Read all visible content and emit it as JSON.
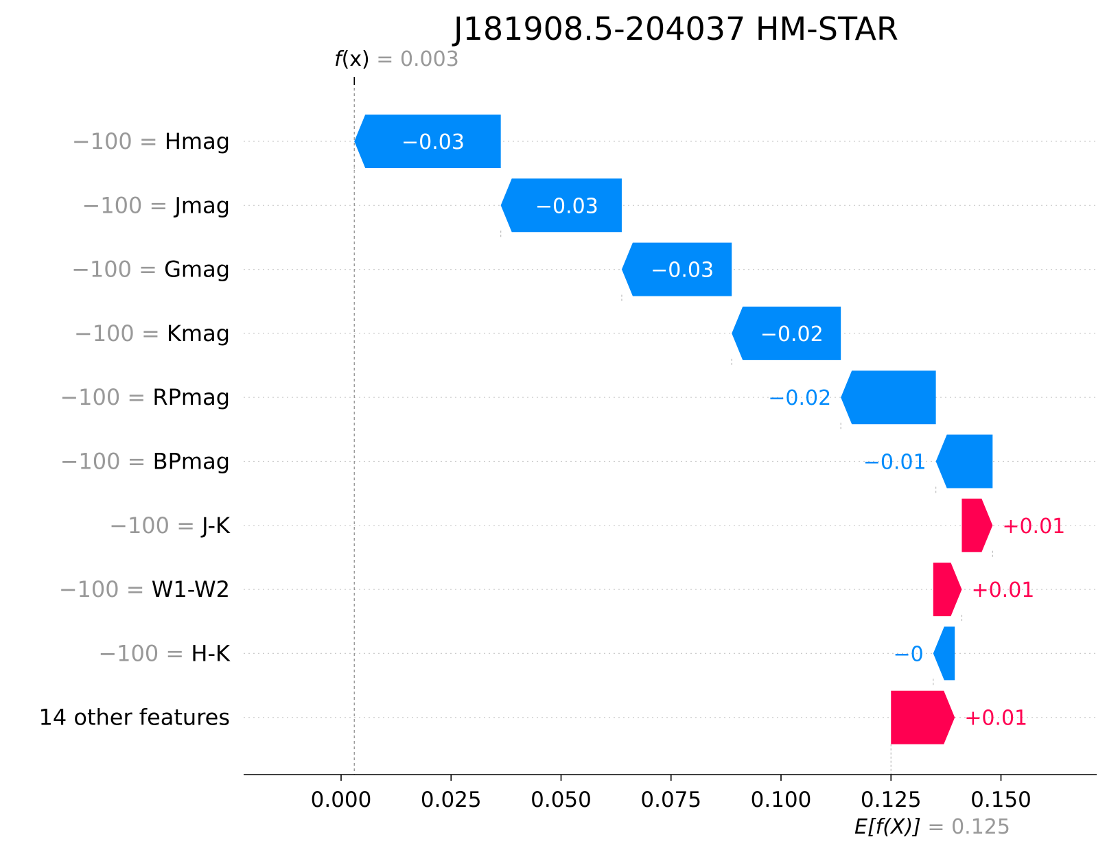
{
  "chart_data": {
    "type": "waterfall",
    "title": "J181908.5-204037 HM-STAR",
    "fx": {
      "label_f": "f",
      "label_x": "(x)",
      "label_eq": "= 0.003",
      "value": 0.003
    },
    "base": {
      "label_e": "E[f(X)]",
      "label_eq": "= 0.125",
      "value": 0.125
    },
    "xlim": [
      -0.025,
      0.17
    ],
    "ticks": [
      {
        "value": 0.0,
        "label": "0.000"
      },
      {
        "value": 0.025,
        "label": "0.025"
      },
      {
        "value": 0.05,
        "label": "0.050"
      },
      {
        "value": 0.075,
        "label": "0.075"
      },
      {
        "value": 0.1,
        "label": "0.100"
      },
      {
        "value": 0.125,
        "label": "0.125"
      },
      {
        "value": 0.15,
        "label": "0.150"
      }
    ],
    "colors": {
      "positive": "#ff0051",
      "negative": "#008bfb"
    },
    "features": [
      {
        "value_text": "−100",
        "name": "Hmag",
        "start": 0.0363,
        "end": 0.003,
        "label": "−0.03"
      },
      {
        "value_text": "−100",
        "name": "Jmag",
        "start": 0.0638,
        "end": 0.0363,
        "label": "−0.03"
      },
      {
        "value_text": "−100",
        "name": "Gmag",
        "start": 0.0888,
        "end": 0.0638,
        "label": "−0.03"
      },
      {
        "value_text": "−100",
        "name": "Kmag",
        "start": 0.1136,
        "end": 0.0888,
        "label": "−0.02"
      },
      {
        "value_text": "−100",
        "name": "RPmag",
        "start": 0.1352,
        "end": 0.1136,
        "label": "−0.02"
      },
      {
        "value_text": "−100",
        "name": "BPmag",
        "start": 0.1481,
        "end": 0.1352,
        "label": "−0.01"
      },
      {
        "value_text": "−100",
        "name": "J-K",
        "start": 0.1411,
        "end": 0.1481,
        "label": "+0.01"
      },
      {
        "value_text": "−100",
        "name": "W1-W2",
        "start": 0.1346,
        "end": 0.1411,
        "label": "+0.01"
      },
      {
        "value_text": "−100",
        "name": "H-K",
        "start": 0.1395,
        "end": 0.1346,
        "label": "−0"
      },
      {
        "value_text": "",
        "name": "14 other features",
        "start": 0.125,
        "end": 0.1395,
        "label": "+0.01"
      }
    ]
  }
}
